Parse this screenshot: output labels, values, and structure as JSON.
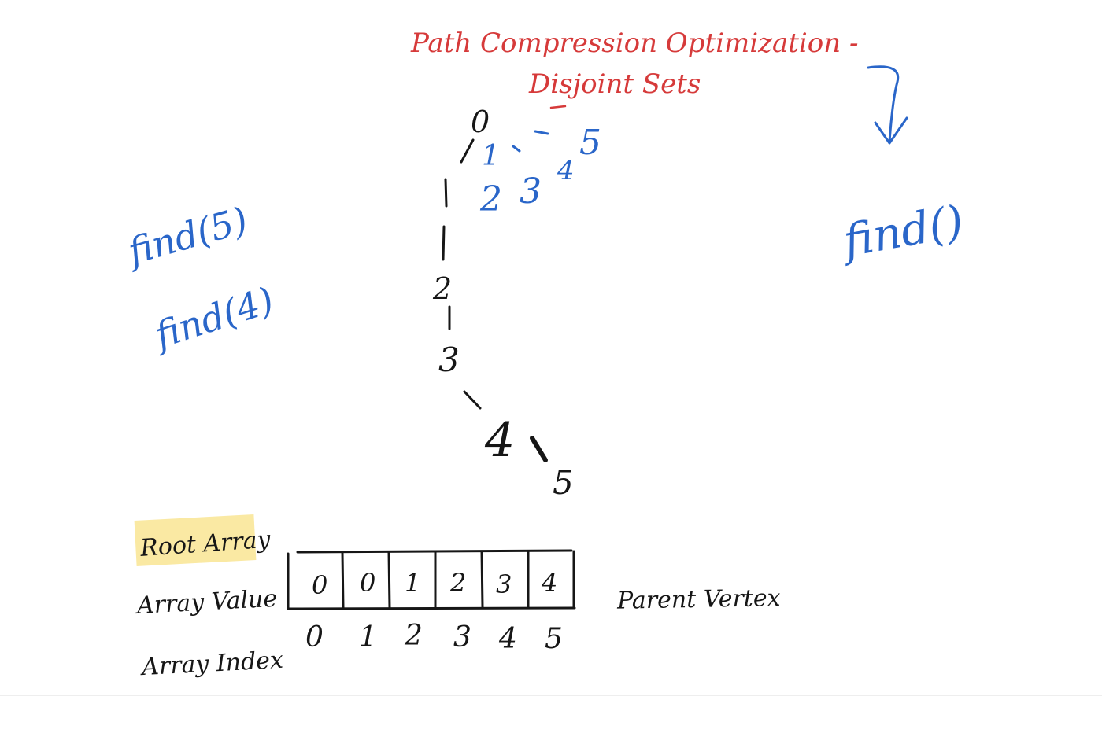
{
  "title": {
    "line1": "Path Compression Optimization -",
    "line2": "Disjoint Sets"
  },
  "tree": {
    "nodes": [
      "0",
      "2",
      "3",
      "4",
      "5"
    ],
    "compressed": [
      "1",
      "2",
      "3",
      "4",
      "5"
    ]
  },
  "calls": {
    "left": [
      "find(5)",
      "find(4)"
    ],
    "right": "find()"
  },
  "array": {
    "heading": "Root Array",
    "value_label": "Array Value",
    "index_label": "Array Index",
    "side_label": "Parent Vertex",
    "values": [
      "0",
      "0",
      "1",
      "2",
      "3",
      "4"
    ],
    "indices": [
      "0",
      "1",
      "2",
      "3",
      "4",
      "5"
    ],
    "highlight": "#fae9a3"
  },
  "colors": {
    "title": "#d63a3a",
    "annotation": "#2a66c9",
    "ink": "#161616"
  }
}
